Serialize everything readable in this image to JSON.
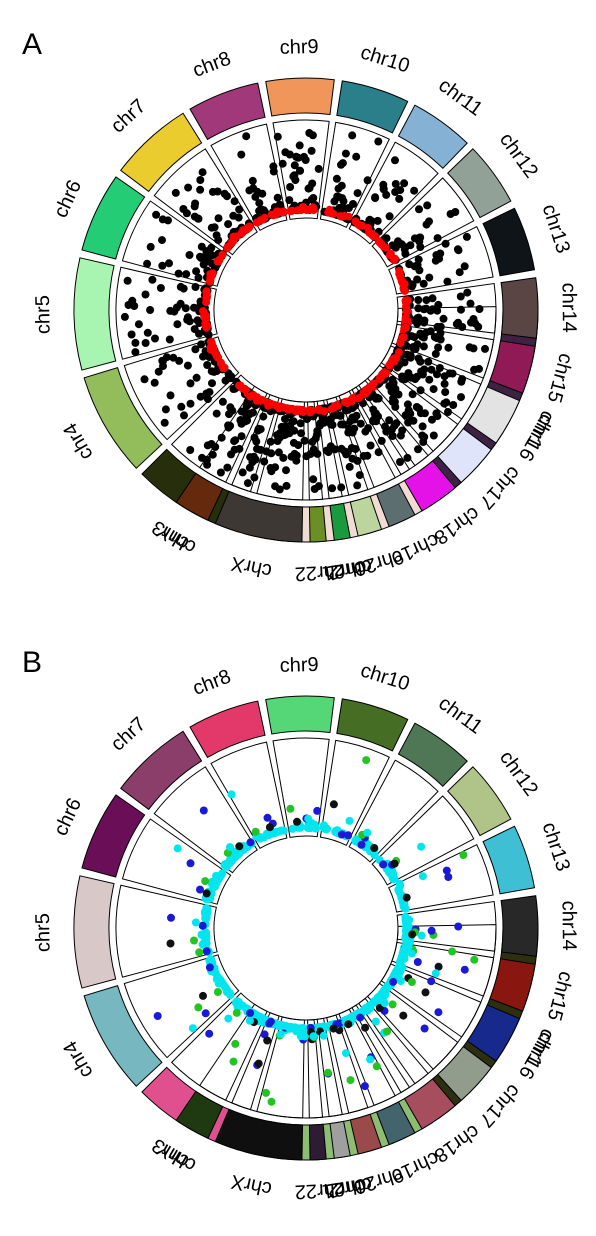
{
  "chart_data": [
    {
      "type": "scatter",
      "panel_label": "A",
      "chromosomes": [
        {
          "name": "chr1",
          "color": "#3d2244"
        },
        {
          "name": "chr2",
          "color": "#f1dcd4"
        },
        {
          "name": "chr3",
          "color": "#262e0c"
        },
        {
          "name": "chr4",
          "color": "#93bd5a"
        },
        {
          "name": "chr5",
          "color": "#a8f5b1"
        },
        {
          "name": "chr6",
          "color": "#24cc76"
        },
        {
          "name": "chr7",
          "color": "#ebcc2e"
        },
        {
          "name": "chr8",
          "color": "#a1387a"
        },
        {
          "name": "chr9",
          "color": "#f0965a"
        },
        {
          "name": "chr10",
          "color": "#2a7f8b"
        },
        {
          "name": "chr11",
          "color": "#84b1d4"
        },
        {
          "name": "chr12",
          "color": "#92a197"
        },
        {
          "name": "chr13",
          "color": "#0f1418"
        },
        {
          "name": "chr14",
          "color": "#5a4545"
        },
        {
          "name": "chr15",
          "color": "#8f1a55"
        },
        {
          "name": "chr16",
          "color": "#e3e3e3"
        },
        {
          "name": "chr17",
          "color": "#dfe4fb"
        },
        {
          "name": "chr18",
          "color": "#e512e7"
        },
        {
          "name": "chr19",
          "color": "#5d6e70"
        },
        {
          "name": "chr20",
          "color": "#bcd59f"
        },
        {
          "name": "chr21",
          "color": "#1a9a3f"
        },
        {
          "name": "chr22",
          "color": "#6b8e25"
        },
        {
          "name": "chrX",
          "color": "#3d3834"
        },
        {
          "name": "chrY",
          "color": "#652a0d"
        }
      ],
      "series": [
        {
          "color": "#000000",
          "density": 70,
          "min_level": 0.0,
          "max_level": 1.0
        },
        {
          "color": "#ff0000",
          "density": 20,
          "min_level": 0.0,
          "max_level": 0.04
        }
      ]
    },
    {
      "type": "scatter",
      "panel_label": "B",
      "chromosomes": [
        {
          "name": "chr1",
          "color": "#2c2f10"
        },
        {
          "name": "chr2",
          "color": "#8cbd71"
        },
        {
          "name": "chr3",
          "color": "#e0508f"
        },
        {
          "name": "chr4",
          "color": "#76b7c0"
        },
        {
          "name": "chr5",
          "color": "#d9c8c8"
        },
        {
          "name": "chr6",
          "color": "#6a0f57"
        },
        {
          "name": "chr7",
          "color": "#8a3e69"
        },
        {
          "name": "chr8",
          "color": "#e3396a"
        },
        {
          "name": "chr9",
          "color": "#56d777"
        },
        {
          "name": "chr10",
          "color": "#456d24"
        },
        {
          "name": "chr11",
          "color": "#4f7756"
        },
        {
          "name": "chr12",
          "color": "#b0c48a"
        },
        {
          "name": "chr13",
          "color": "#3ebfd4"
        },
        {
          "name": "chr14",
          "color": "#282828"
        },
        {
          "name": "chr15",
          "color": "#8a1610"
        },
        {
          "name": "chr16",
          "color": "#18298d"
        },
        {
          "name": "chr17",
          "color": "#929c8d"
        },
        {
          "name": "chr18",
          "color": "#a64d5e"
        },
        {
          "name": "chr19",
          "color": "#43636d"
        },
        {
          "name": "chr20",
          "color": "#9a4a4a"
        },
        {
          "name": "chr21",
          "color": "#9f9f9f"
        },
        {
          "name": "chr22",
          "color": "#2e1c35"
        },
        {
          "name": "chrX",
          "color": "#0f0f0f"
        },
        {
          "name": "chrY",
          "color": "#1f3a10"
        }
      ],
      "series": [
        {
          "color": "#00e5ee",
          "density": 34,
          "min_level": 0.0,
          "max_level": 0.06
        },
        {
          "color": "#1a1ad6",
          "density": 3,
          "min_level": 0.0,
          "max_level": 0.9
        },
        {
          "color": "#22c422",
          "density": 2,
          "min_level": 0.1,
          "max_level": 0.95
        },
        {
          "color": "#111111",
          "density": 1,
          "min_level": 0.05,
          "max_level": 0.6
        },
        {
          "color": "#00e5ee",
          "density": 1,
          "min_level": 0.1,
          "max_level": 0.7
        }
      ]
    }
  ]
}
